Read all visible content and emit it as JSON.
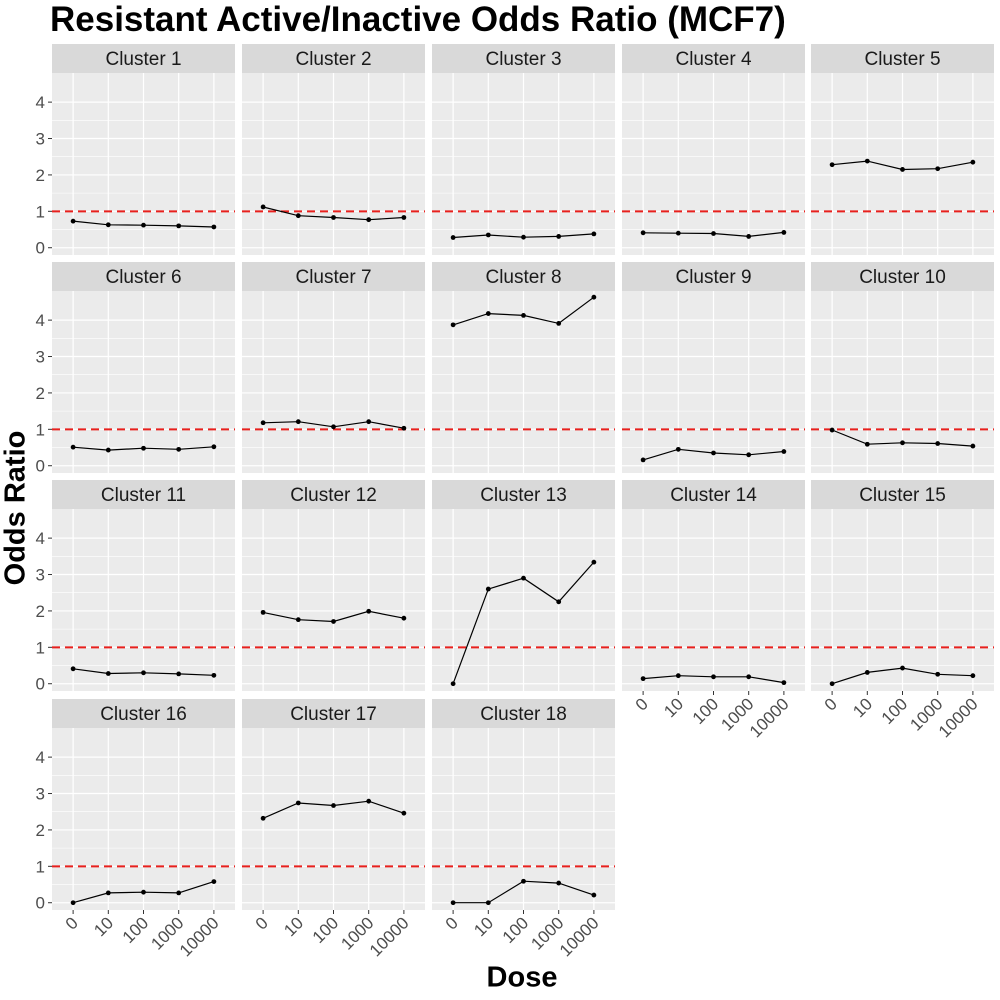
{
  "chart_data": {
    "type": "line",
    "title": "Resistant Active/Inactive Odds Ratio (MCF7)",
    "xlabel": "Dose",
    "ylabel": "Odds Ratio",
    "x_categories": [
      "0",
      "10",
      "100",
      "1000",
      "10000"
    ],
    "y_ticks": [
      0,
      1,
      2,
      3,
      4
    ],
    "ylim": [
      -0.2,
      4.8
    ],
    "reference_line": {
      "y": 1,
      "style": "dashed",
      "color": "#e8201d"
    },
    "grid": true,
    "layout": "facet-wrap 5 columns",
    "colors": {
      "panel_bg": "#ebebeb",
      "strip_bg": "#d9d9d9",
      "grid": "#ffffff",
      "line": "#000000"
    },
    "facets": [
      {
        "label": "Cluster 1",
        "values": [
          0.73,
          0.63,
          0.62,
          0.6,
          0.57
        ]
      },
      {
        "label": "Cluster 2",
        "values": [
          1.12,
          0.88,
          0.83,
          0.77,
          0.83
        ]
      },
      {
        "label": "Cluster 3",
        "values": [
          0.28,
          0.35,
          0.29,
          0.31,
          0.38
        ]
      },
      {
        "label": "Cluster 4",
        "values": [
          0.41,
          0.4,
          0.39,
          0.31,
          0.42
        ]
      },
      {
        "label": "Cluster 5",
        "values": [
          2.28,
          2.38,
          2.15,
          2.17,
          2.35
        ]
      },
      {
        "label": "Cluster 6",
        "values": [
          0.51,
          0.43,
          0.48,
          0.45,
          0.52
        ]
      },
      {
        "label": "Cluster 7",
        "values": [
          1.18,
          1.21,
          1.07,
          1.21,
          1.03
        ]
      },
      {
        "label": "Cluster 8",
        "values": [
          3.87,
          4.18,
          4.13,
          3.91,
          4.63
        ]
      },
      {
        "label": "Cluster 9",
        "values": [
          0.16,
          0.45,
          0.35,
          0.3,
          0.39
        ]
      },
      {
        "label": "Cluster 10",
        "values": [
          0.98,
          0.59,
          0.63,
          0.61,
          0.54
        ]
      },
      {
        "label": "Cluster 11",
        "values": [
          0.41,
          0.28,
          0.3,
          0.27,
          0.23
        ]
      },
      {
        "label": "Cluster 12",
        "values": [
          1.96,
          1.76,
          1.71,
          1.99,
          1.8
        ]
      },
      {
        "label": "Cluster 13",
        "values": [
          0.0,
          2.6,
          2.9,
          2.25,
          3.34
        ]
      },
      {
        "label": "Cluster 14",
        "values": [
          0.14,
          0.22,
          0.19,
          0.19,
          0.03
        ]
      },
      {
        "label": "Cluster 15",
        "values": [
          0.0,
          0.31,
          0.43,
          0.26,
          0.22
        ]
      },
      {
        "label": "Cluster 16",
        "values": [
          0.0,
          0.27,
          0.29,
          0.27,
          0.58
        ]
      },
      {
        "label": "Cluster 17",
        "values": [
          2.32,
          2.74,
          2.67,
          2.79,
          2.46
        ]
      },
      {
        "label": "Cluster 18",
        "values": [
          0.0,
          0.0,
          0.59,
          0.54,
          0.21
        ]
      }
    ]
  }
}
